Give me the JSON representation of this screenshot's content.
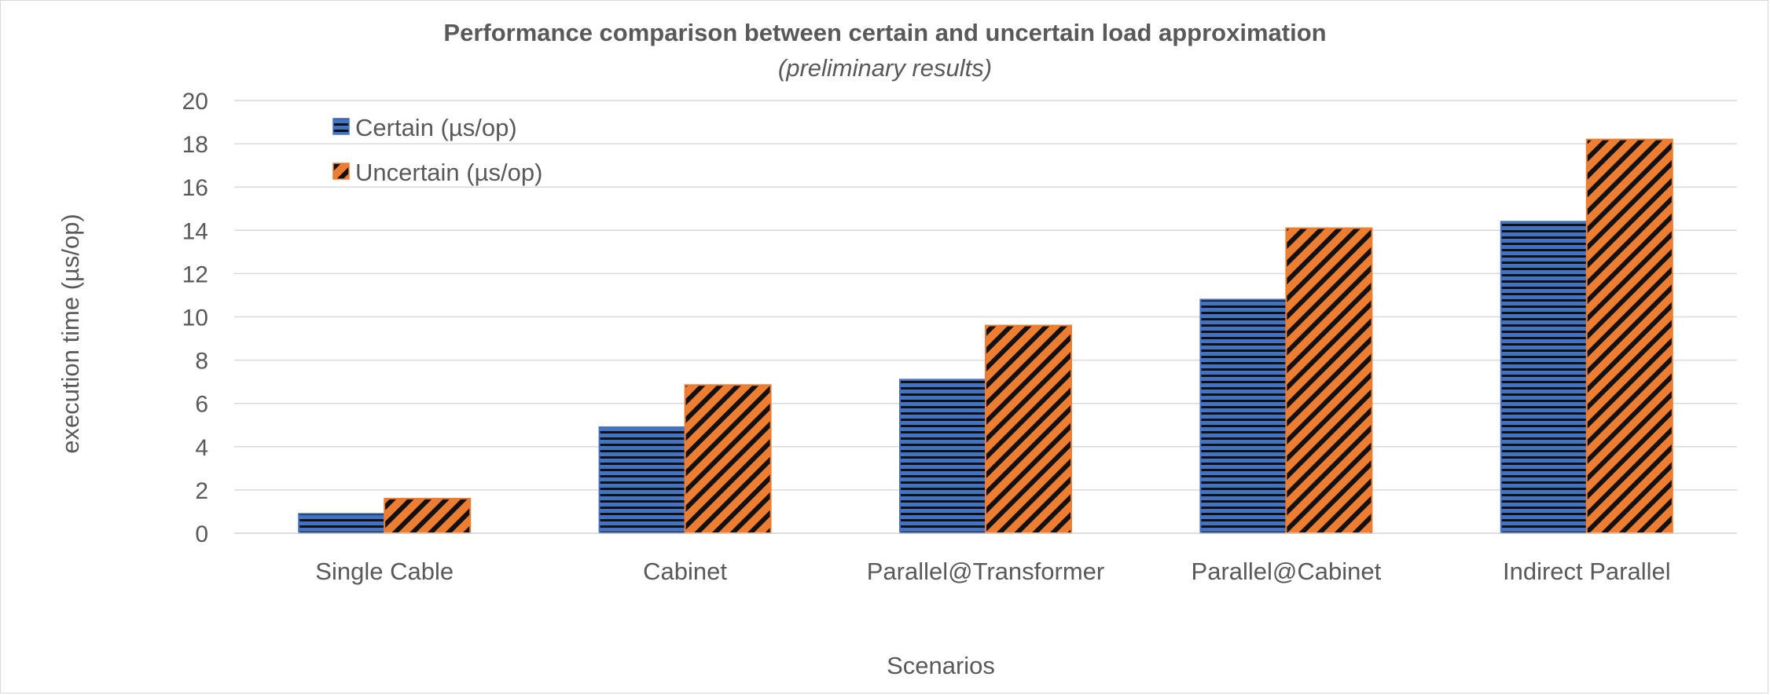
{
  "chart_data": {
    "type": "bar",
    "title": "Performance comparison between certain and uncertain load approximation",
    "subtitle": "(preliminary results)",
    "xlabel": "Scenarios",
    "ylabel": "execution time (µs/op)",
    "ylim": [
      0,
      20
    ],
    "yticks": [
      0,
      2,
      4,
      6,
      8,
      10,
      12,
      14,
      16,
      18,
      20
    ],
    "grid": true,
    "legend_position": "top-left",
    "categories": [
      "Single Cable",
      "Cabinet",
      "Parallel@Transformer",
      "Parallel@Cabinet",
      "Indirect Parallel"
    ],
    "series": [
      {
        "name": "Certain (µs/op)",
        "values": [
          0.9,
          4.9,
          7.1,
          10.8,
          14.4
        ],
        "color": "#4472c4",
        "pattern": "horizontal-lines"
      },
      {
        "name": "Uncertain  (µs/op)",
        "values": [
          1.6,
          6.85,
          9.6,
          14.1,
          18.2
        ],
        "color": "#ed7d31",
        "pattern": "diagonal-lines"
      }
    ]
  }
}
